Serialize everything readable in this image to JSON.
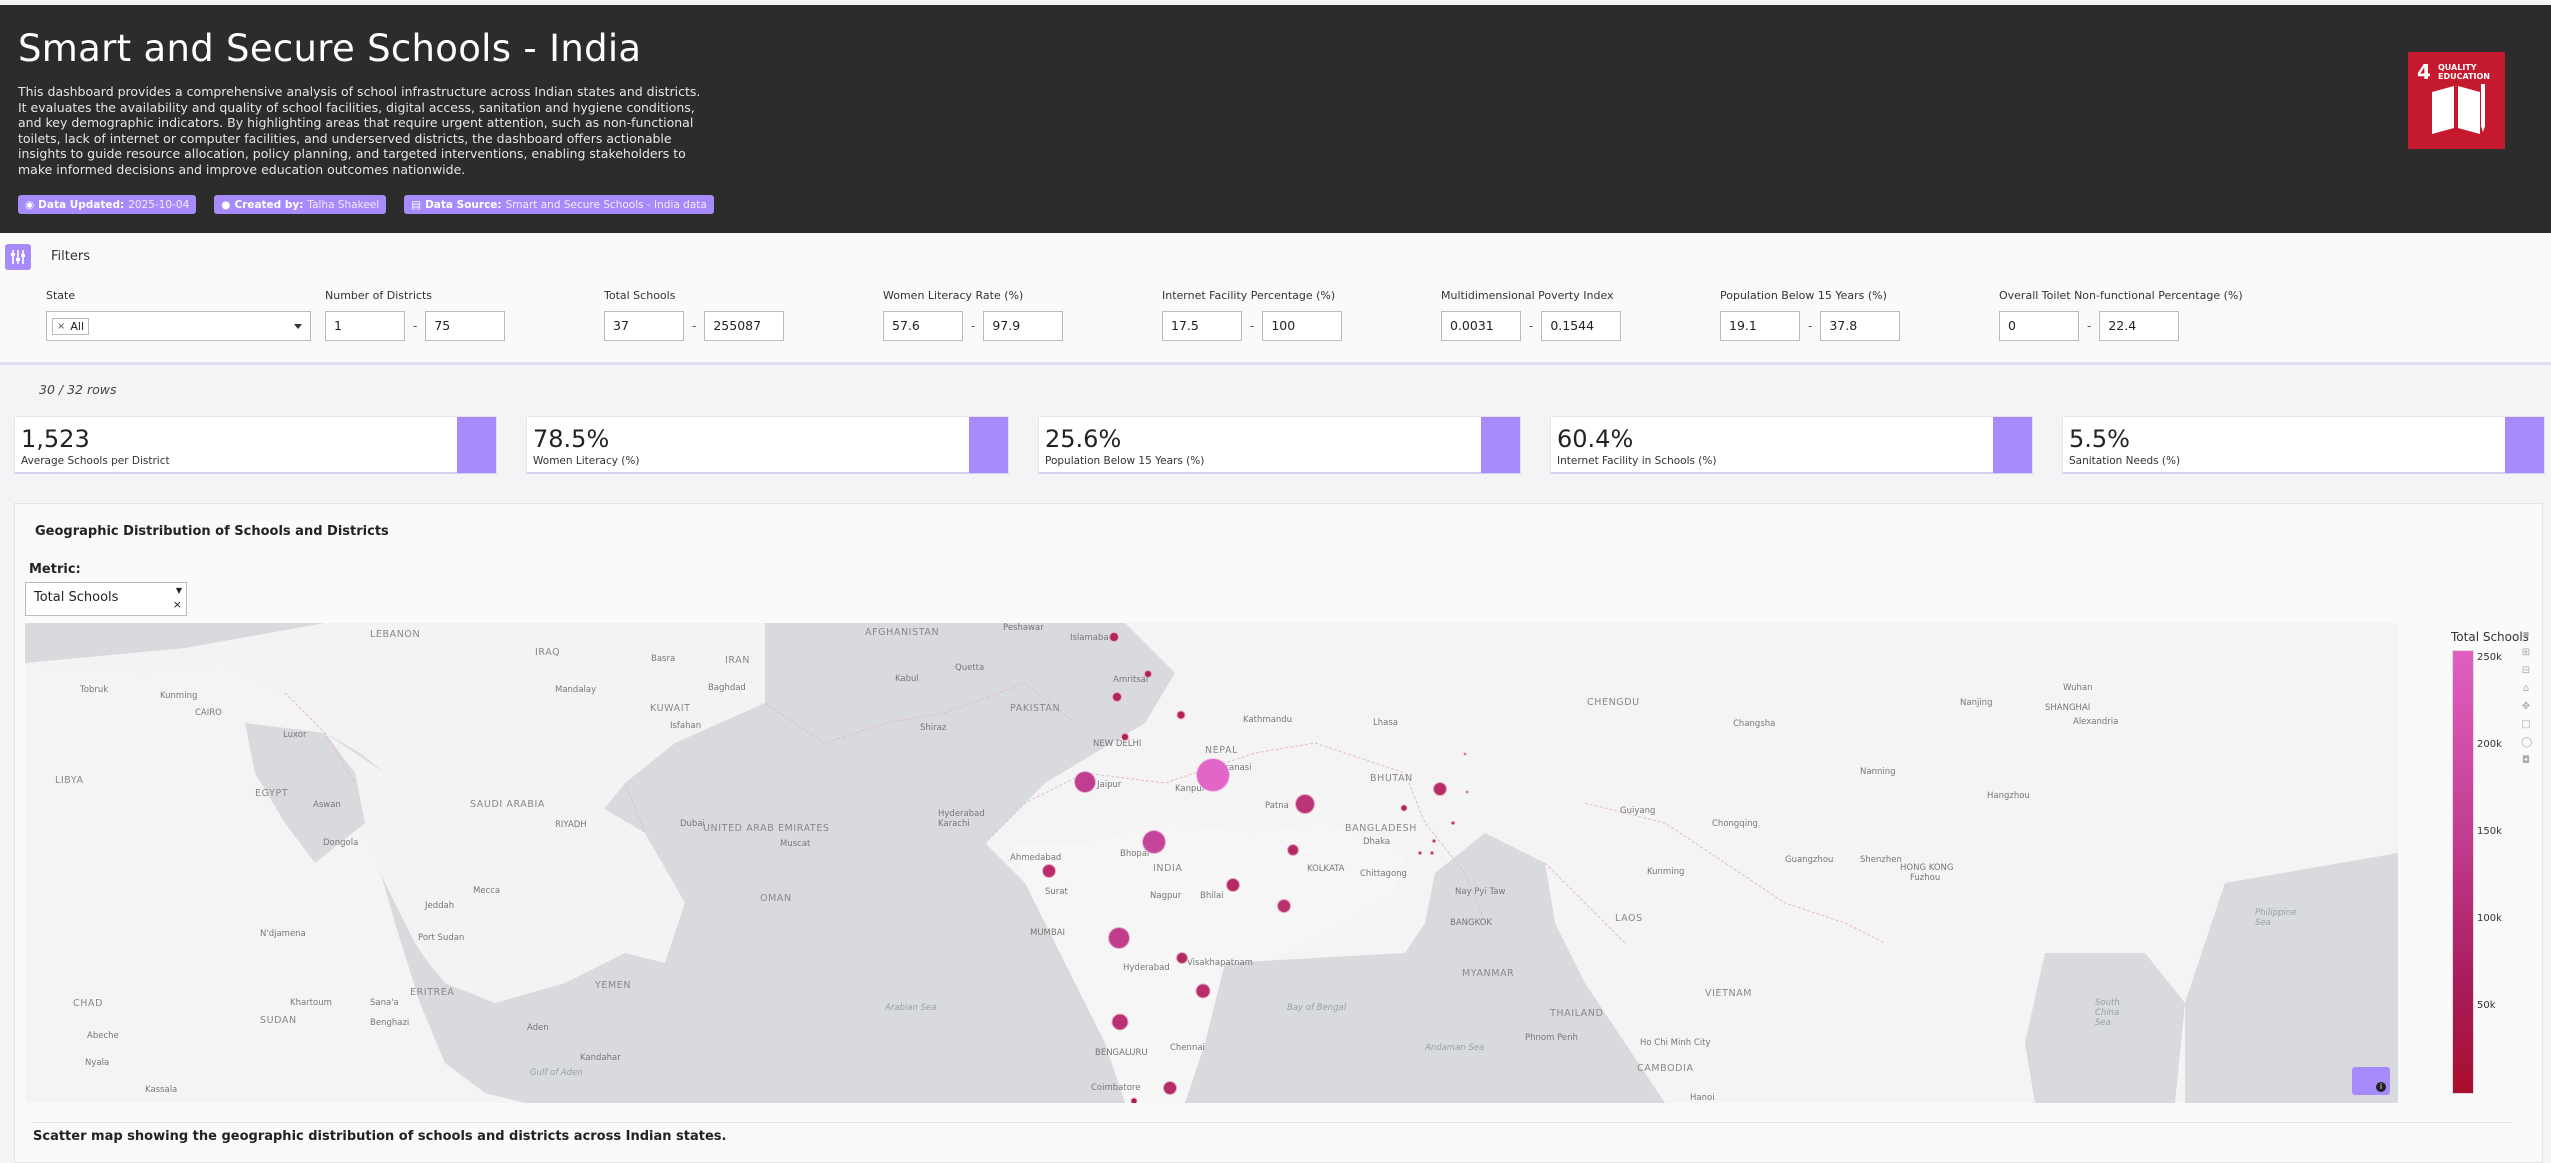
{
  "header": {
    "title": "Smart and Secure Schools - India",
    "description": "This dashboard provides a comprehensive analysis of school infrastructure across Indian states and districts. It evaluates the availability and quality of school facilities, digital access, sanitation and hygiene conditions, and key demographic indicators. By highlighting areas that require urgent attention, such as non-functional toilets, lack of internet or computer facilities, and underserved districts, the dashboard offers actionable insights to guide resource allocation, policy planning, and targeted interventions, enabling stakeholders to make informed decisions and improve education outcomes nationwide.",
    "badges": [
      {
        "key": "Data Updated:",
        "value": "2025-10-04"
      },
      {
        "key": "Created by:",
        "value": "Talha Shakeel"
      },
      {
        "key": "Data Source:",
        "value": "Smart and Secure Schools - India data"
      }
    ],
    "sdg": {
      "number": "4",
      "label_line1": "QUALITY",
      "label_line2": "EDUCATION",
      "color": "#c5192d"
    }
  },
  "filters": {
    "label": "Filters",
    "state": {
      "label": "State",
      "selected": "All"
    },
    "ranges": [
      {
        "label": "Number of Districts",
        "min": "1",
        "max": "75"
      },
      {
        "label": "Total Schools",
        "min": "37",
        "max": "255087"
      },
      {
        "label": "Women Literacy Rate (%)",
        "min": "57.6",
        "max": "97.9"
      },
      {
        "label": "Internet Facility Percentage (%)",
        "min": "17.5",
        "max": "100"
      },
      {
        "label": "Multidimensional Poverty Index",
        "min": "0.0031",
        "max": "0.1544"
      },
      {
        "label": "Population Below 15 Years (%)",
        "min": "19.1",
        "max": "37.8"
      },
      {
        "label": "Overall Toilet Non-functional Percentage (%)",
        "min": "0",
        "max": "22.4"
      }
    ]
  },
  "rows": "30 / 32 rows",
  "kpis": [
    {
      "value": "1,523",
      "label": "Average Schools per District"
    },
    {
      "value": "78.5%",
      "label": "Women Literacy (%)"
    },
    {
      "value": "25.6%",
      "label": "Population Below 15 Years (%)"
    },
    {
      "value": "60.4%",
      "label": "Internet Facility in Schools (%)"
    },
    {
      "value": "5.5%",
      "label": "Sanitation Needs (%)"
    }
  ],
  "map_panel": {
    "title": "Geographic Distribution of Schools and Districts",
    "metric_label": "Metric:",
    "metric_value": "Total Schools",
    "colorbar_title": "Total Schools",
    "colorbar_ticks": [
      "250k",
      "200k",
      "150k",
      "100k",
      "50k"
    ],
    "caption": "Scatter map showing the geographic distribution of schools and districts across Indian states.",
    "accent": "#a78bfa"
  },
  "map_labels": {
    "countries": [
      "LIBYA",
      "EGYPT",
      "SAUDI ARABIA",
      "UNITED ARAB EMIRATES",
      "OMAN",
      "YEMEN",
      "ERITREA",
      "SUDAN",
      "CHAD",
      "IRAQ",
      "IRAN",
      "KUWAIT",
      "AFGHANISTAN",
      "PAKISTAN",
      "NEPAL",
      "BHUTAN",
      "BANGLADESH",
      "MYANMAR",
      "INDIA",
      "LAOS",
      "THAILAND",
      "VIETNAM",
      "CAMBODIA",
      "CHENGDU",
      "LEBANON"
    ],
    "cities": [
      "Peshawar",
      "Islamabad",
      "Amritsar",
      "NEW DELHI",
      "Jaipur",
      "Kanpur",
      "Varanasi",
      "Patna",
      "Kathmandu",
      "Lhasa",
      "Bhopal",
      "Nagpur",
      "Bhilai",
      "KOLKATA",
      "Dhaka",
      "Chittagong",
      "Ahmedabad",
      "Surat",
      "MUMBAI",
      "Hyderabad",
      "Visakhapatnam",
      "BENGALURU",
      "Chennai",
      "Coimbatore",
      "Karachi",
      "Hyderabad",
      "Muscat",
      "Dubai",
      "RIYADH",
      "Mecca",
      "Jeddah",
      "Port Sudan",
      "Khartoum",
      "Sana'a",
      "Aden",
      "Kandahar",
      "Kabul",
      "Quetta",
      "Shiraz",
      "Isfahan",
      "Baghdad",
      "Basra",
      "Mandalay",
      "Nay Pyi Taw",
      "BANGKOK",
      "Phnom Penh",
      "Ho Chi Minh City",
      "Hanoi",
      "Kunming",
      "Guiyang",
      "Chongqing",
      "Changsha",
      "Nanning",
      "Guangzhou",
      "Shenzhen",
      "HONG KONG",
      "Fuzhou",
      "Hangzhou",
      "SHANGHAI",
      "Wuhan",
      "Nanjing",
      "Alexandria",
      "CAIRO",
      "Luxor",
      "Aswan",
      "Dongola",
      "N'djamena",
      "Abeche",
      "Nyala",
      "Kassala",
      "Benghazi",
      "Tobruk",
      "Kunming"
    ],
    "seas": [
      "Bay of Bengal",
      "Arabian Sea",
      "South China Sea",
      "Philippine Sea",
      "Andaman Sea",
      "Gulf of Aden"
    ]
  }
}
